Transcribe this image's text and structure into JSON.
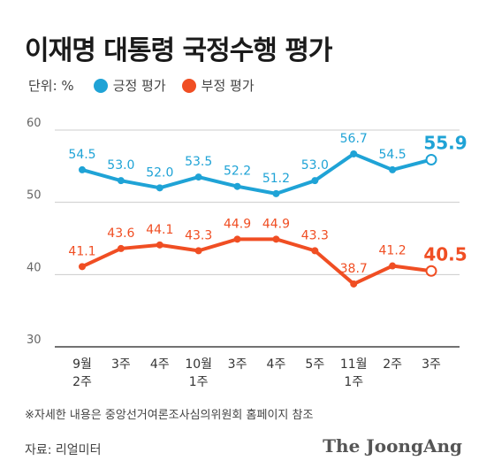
{
  "title": "이재명 대통령 국정수행 평가",
  "unit_label": "단위: %",
  "footnote": "※자세한 내용은 중앙선거여론조사심의위원회 홈페이지 참조",
  "source": "자료: 리얼미터",
  "brand": "The JoongAng",
  "colors": {
    "positive": "#1fa3d6",
    "negative": "#f04e23",
    "grid": "#cccccc",
    "axis": "#444444"
  },
  "chart_data": {
    "type": "line",
    "categories": [
      [
        "9월",
        "2주"
      ],
      [
        "3주"
      ],
      [
        "4주"
      ],
      [
        "10월",
        "1주"
      ],
      [
        "3주"
      ],
      [
        "4주"
      ],
      [
        "5주"
      ],
      [
        "11월",
        "1주"
      ],
      [
        "2주"
      ],
      [
        "3주"
      ]
    ],
    "series": [
      {
        "name": "긍정 평가",
        "values": [
          54.5,
          53.0,
          52.0,
          53.5,
          52.2,
          51.2,
          53.0,
          56.7,
          54.5,
          55.9
        ],
        "labels": [
          "54.5",
          "53.0",
          "52.0",
          "53.5",
          "52.2",
          "51.2",
          "53.0",
          "56.7",
          "54.5",
          "55.9"
        ]
      },
      {
        "name": "부정 평가",
        "values": [
          41.1,
          43.6,
          44.1,
          43.3,
          44.9,
          44.9,
          43.3,
          38.7,
          41.2,
          40.5
        ],
        "labels": [
          "41.1",
          "43.6",
          "44.1",
          "43.3",
          "44.9",
          "44.9",
          "43.3",
          "38.7",
          "41.2",
          "40.5"
        ]
      }
    ],
    "y_ticks": [
      "30",
      "40",
      "50",
      "60"
    ],
    "ylim": [
      30,
      60
    ],
    "grid": true,
    "legend": "top-left"
  }
}
